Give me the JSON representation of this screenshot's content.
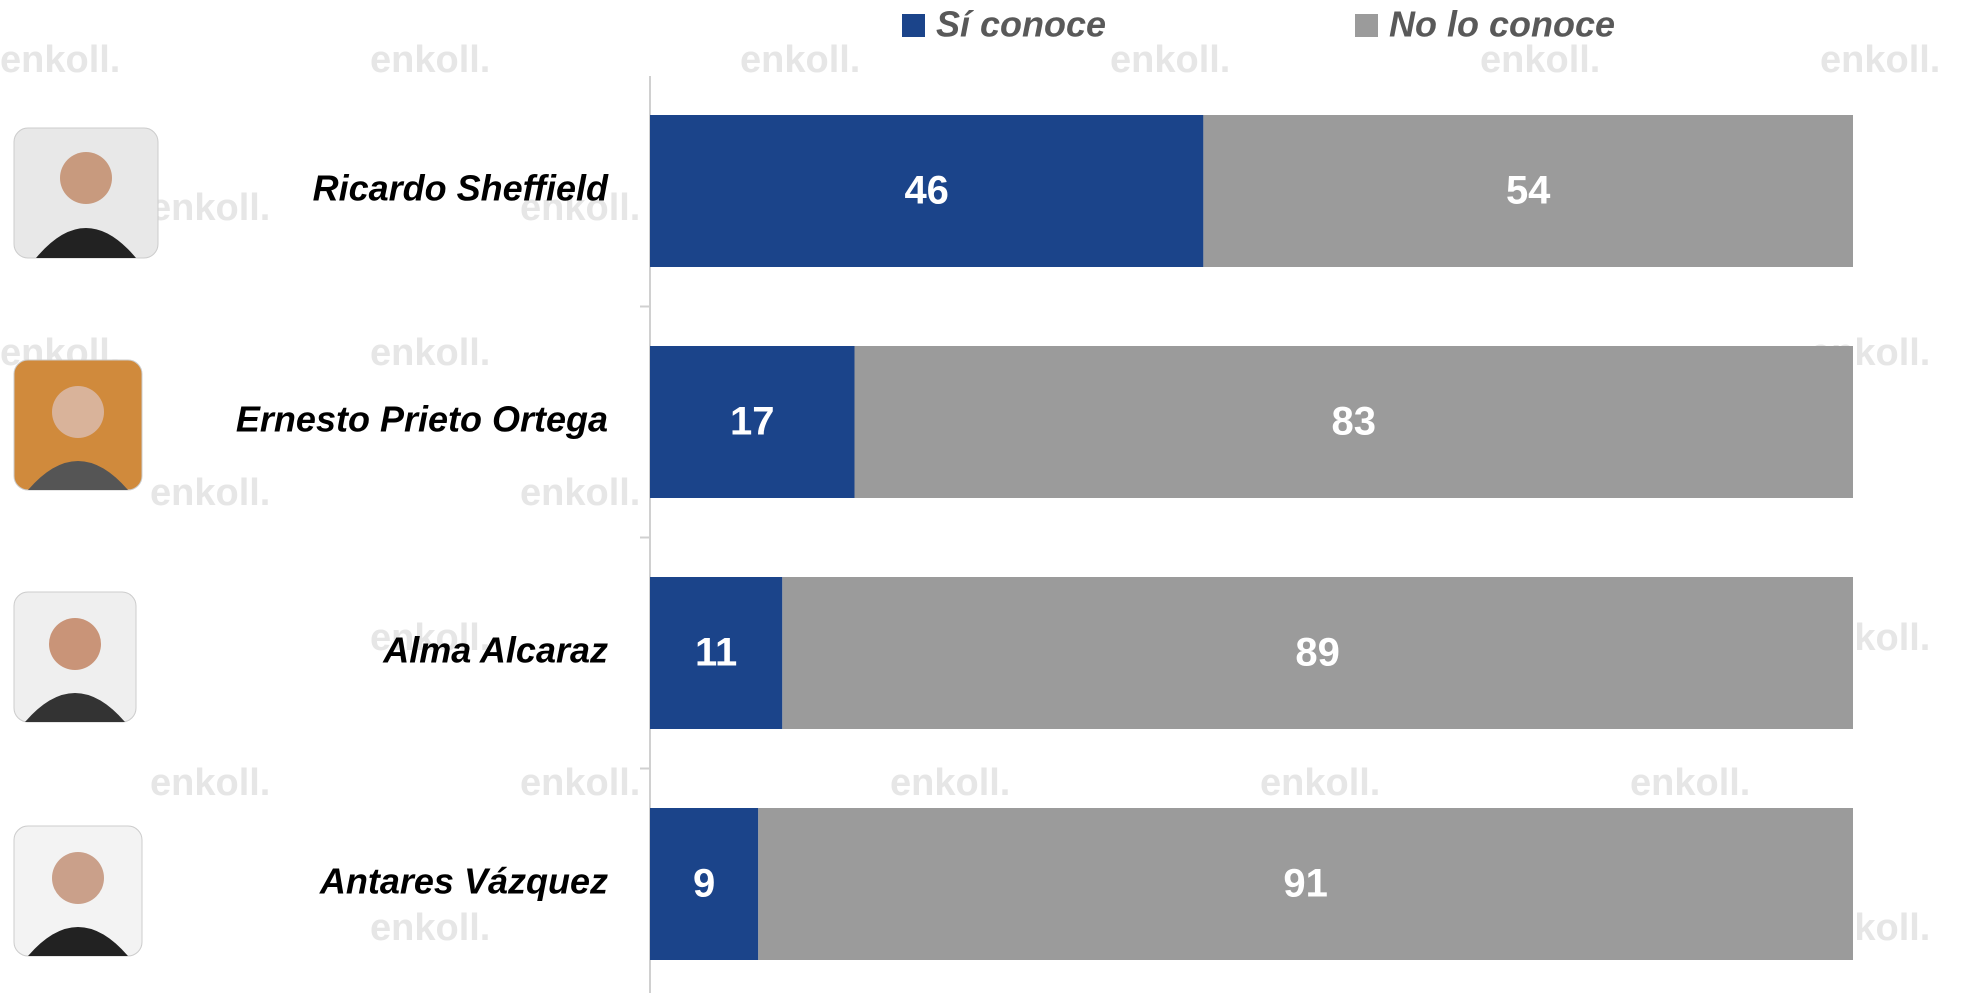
{
  "chart_data": {
    "type": "stacked_barh",
    "watermark": "enkoll.",
    "categories": [
      "Ricardo Sheffield",
      "Ernesto Prieto Ortega",
      "Alma Alcaraz",
      "Antares Vázquez"
    ],
    "series": [
      {
        "name": "Sí conoce",
        "color": "#1b448a",
        "values": [
          46,
          17,
          11,
          9
        ]
      },
      {
        "name": "No lo conoce",
        "color": "#9b9b9b",
        "values": [
          54,
          83,
          89,
          91
        ]
      }
    ],
    "xlim": [
      0,
      100
    ],
    "legend": "top"
  }
}
